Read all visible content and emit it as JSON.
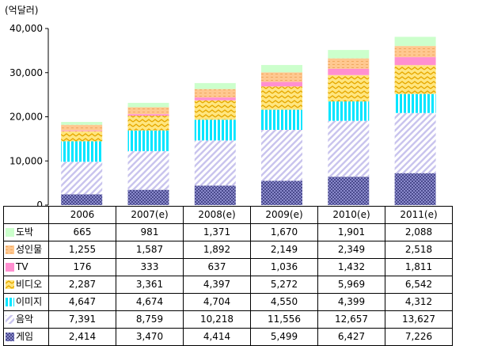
{
  "unit_label": "(억달러)",
  "chart_data": {
    "type": "bar",
    "stacked": true,
    "categories": [
      "2006",
      "2007(e)",
      "2008(e)",
      "2009(e)",
      "2010(e)",
      "2011(e)"
    ],
    "ylim": [
      0,
      40000
    ],
    "yticks": [
      "0",
      "10,000",
      "20,000",
      "30,000",
      "40,000"
    ],
    "grid": false,
    "legend": "table",
    "series": [
      {
        "name": "게임",
        "color": "#7d7dbf",
        "pattern": "dots",
        "values": [
          2414,
          3470,
          4414,
          5499,
          6427,
          7226
        ],
        "labels": [
          "2,414",
          "3,470",
          "4,414",
          "5,499",
          "6,427",
          "7,226"
        ]
      },
      {
        "name": "음악",
        "color": "#c9c4ee",
        "pattern": "diag",
        "values": [
          7391,
          8759,
          10218,
          11556,
          12657,
          13627
        ],
        "labels": [
          "7,391",
          "8,759",
          "10,218",
          "11,556",
          "12,657",
          "13,627"
        ]
      },
      {
        "name": "이미지",
        "color": "#00e5ff",
        "pattern": "vbars",
        "values": [
          4647,
          4674,
          4704,
          4550,
          4399,
          4312
        ],
        "labels": [
          "4,647",
          "4,674",
          "4,704",
          "4,550",
          "4,399",
          "4,312"
        ]
      },
      {
        "name": "비디오",
        "color": "#ffd24a",
        "pattern": "zigzag",
        "values": [
          2287,
          3361,
          4397,
          5272,
          5969,
          6542
        ],
        "labels": [
          "2,287",
          "3,361",
          "4,397",
          "5,272",
          "5,969",
          "6,542"
        ]
      },
      {
        "name": "TV",
        "color": "#ff8fd0",
        "pattern": "solid",
        "values": [
          176,
          333,
          637,
          1036,
          1432,
          1811
        ],
        "labels": [
          "176",
          "333",
          "637",
          "1,036",
          "1,432",
          "1,811"
        ]
      },
      {
        "name": "성인물",
        "color": "#ffc890",
        "pattern": "dashes",
        "values": [
          1255,
          1587,
          1892,
          2149,
          2349,
          2518
        ],
        "labels": [
          "1,255",
          "1,587",
          "1,892",
          "2,149",
          "2,349",
          "2,518"
        ]
      },
      {
        "name": "도박",
        "color": "#ccffcc",
        "pattern": "solid",
        "values": [
          665,
          981,
          1371,
          1670,
          1901,
          2088
        ],
        "labels": [
          "665",
          "981",
          "1,371",
          "1,670",
          "1,901",
          "2,088"
        ]
      }
    ]
  }
}
